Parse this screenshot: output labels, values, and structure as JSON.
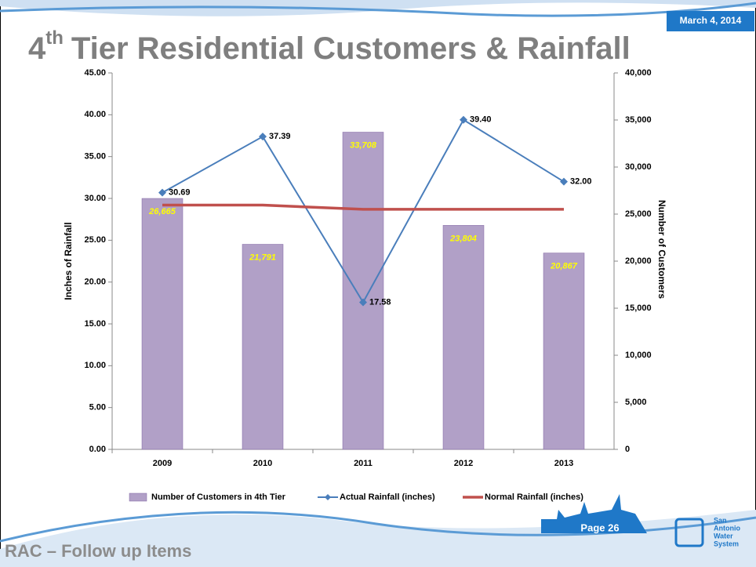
{
  "header": {
    "date": "March 4, 2014",
    "title": {
      "number": "4",
      "sup": "th",
      "rest": "Tier Residential Customers & Rainfall"
    }
  },
  "chart_data": {
    "type": "bar",
    "categories": [
      "2009",
      "2010",
      "2011",
      "2012",
      "2013"
    ],
    "ylabel": "Inches of Rainfall",
    "y2label": "Number of Customers",
    "ylim": [
      0,
      45
    ],
    "yticks": [
      {
        "value": 0,
        "label": "0.00"
      },
      {
        "value": 5,
        "label": "5.00"
      },
      {
        "value": 10,
        "label": "10.00"
      },
      {
        "value": 15,
        "label": "15.00"
      },
      {
        "value": 20,
        "label": "20.00"
      },
      {
        "value": 25,
        "label": "25.00"
      },
      {
        "value": 30,
        "label": "30.00"
      },
      {
        "value": 35,
        "label": "35.00"
      },
      {
        "value": 40,
        "label": "40.00"
      },
      {
        "value": 45,
        "label": "45.00"
      }
    ],
    "y2lim": [
      0,
      40000
    ],
    "y2ticks": [
      0,
      {
        "value": 5000,
        "label": "5,000"
      },
      {
        "value": 10000,
        "label": "10,000"
      },
      {
        "value": 15000,
        "label": "15,000"
      },
      {
        "value": 20000,
        "label": "20,000"
      },
      {
        "value": 25000,
        "label": "25,000"
      },
      {
        "value": 30000,
        "label": "30,000"
      },
      {
        "value": 35000,
        "label": "35,000"
      },
      {
        "value": 40000,
        "label": "40,000"
      }
    ],
    "series": [
      {
        "name": "Number of Customers in 4th Tier",
        "type": "bar",
        "axis": "y2",
        "color": "#b1a0c7",
        "values": [
          26665,
          21791,
          33708,
          23804,
          20867
        ],
        "value_labels": [
          "26,665",
          "21,791",
          "33,708",
          "23,804",
          "20,867"
        ]
      },
      {
        "name": "Actual Rainfall (inches)",
        "type": "line",
        "color": "#4a7ebb",
        "markers": true,
        "values": [
          30.69,
          37.39,
          17.58,
          39.4,
          32.0
        ],
        "value_labels": [
          "30.69",
          "37.39",
          "17.58",
          "39.40",
          "32.00"
        ]
      },
      {
        "name": "Normal Rainfall (inches)",
        "type": "line",
        "color": "#c0504d",
        "markers": false,
        "values": [
          29.2,
          29.2,
          28.7,
          28.7,
          28.7
        ]
      }
    ]
  },
  "footer": {
    "section": "RAC – Follow up Items",
    "page": "Page 26",
    "logo": [
      "San",
      "Antonio",
      "Water",
      "System"
    ]
  }
}
